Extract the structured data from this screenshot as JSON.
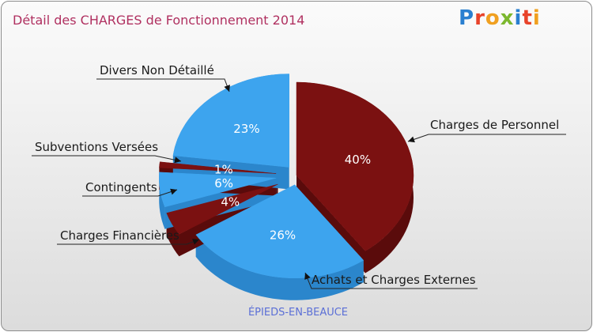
{
  "title": "Détail des CHARGES de Fonctionnement 2014",
  "logo": {
    "letters": [
      "P",
      "r",
      "o",
      "x",
      "i",
      "t",
      "i"
    ],
    "colors": [
      "#2a7fd0",
      "#e8432a",
      "#f0a020",
      "#7cb82f",
      "#2a7fd0",
      "#e8432a",
      "#f0a020"
    ]
  },
  "footer": "ÉPIEDS-EN-BEAUCE",
  "chart_data": {
    "type": "pie",
    "title": "Détail des CHARGES de Fonctionnement 2014",
    "slices": [
      {
        "name": "Charges de Personnel",
        "value": 40,
        "pct_label": "40%",
        "color": "#7b1111",
        "side_color": "#5a0b0b"
      },
      {
        "name": "Achats et Charges Externes",
        "value": 26,
        "pct_label": "26%",
        "color": "#3da4ee",
        "side_color": "#2b86cc"
      },
      {
        "name": "Charges Financières",
        "value": 4,
        "pct_label": "4%",
        "color": "#7b1111",
        "side_color": "#5a0b0b"
      },
      {
        "name": "Contingents",
        "value": 6,
        "pct_label": "6%",
        "color": "#3da4ee",
        "side_color": "#2b86cc"
      },
      {
        "name": "Subventions Versées",
        "value": 1,
        "pct_label": "1%",
        "color": "#7b1111",
        "side_color": "#5a0b0b"
      },
      {
        "name": "Divers Non Détaillé",
        "value": 23,
        "pct_label": "23%",
        "color": "#3da4ee",
        "side_color": "#2b86cc"
      }
    ]
  }
}
